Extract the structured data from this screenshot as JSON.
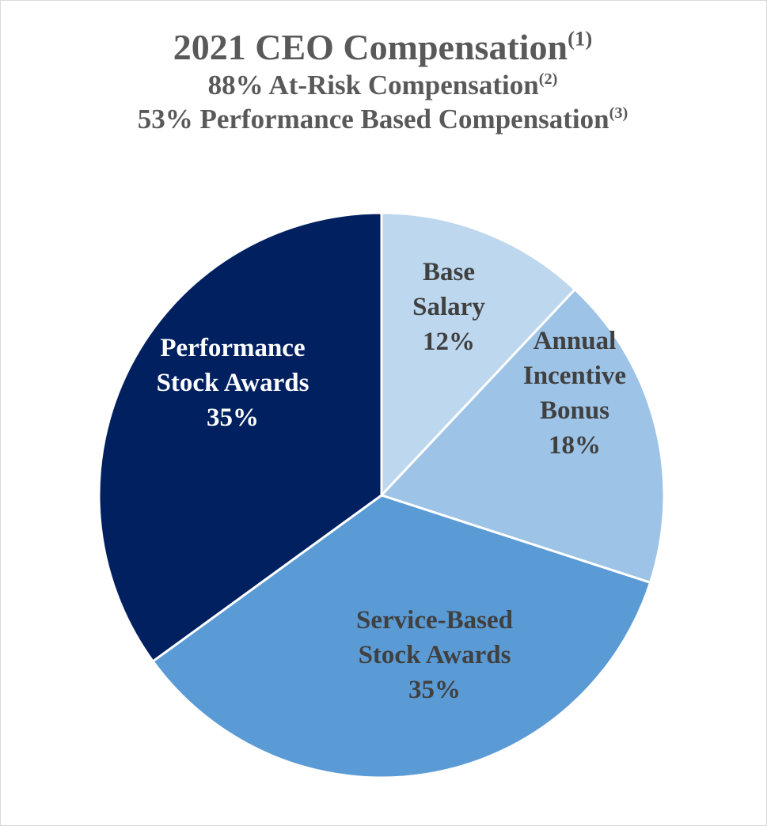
{
  "chart_data": {
    "type": "pie",
    "title": "2021 CEO Compensation",
    "title_note": "(1)",
    "subtitles": [
      {
        "text": "88% At-Risk Compensation",
        "note": "(2)"
      },
      {
        "text": "53% Performance Based Compensation",
        "note": "(3)"
      }
    ],
    "slices": [
      {
        "lines": [
          "Base",
          "Salary"
        ],
        "pct_label": "12%",
        "value": 12,
        "color": "#bdd7ee",
        "label_color": "#404040"
      },
      {
        "lines": [
          "Annual",
          "Incentive",
          "Bonus"
        ],
        "pct_label": "18%",
        "value": 18,
        "color": "#9dc3e6",
        "label_color": "#404040"
      },
      {
        "lines": [
          "Service-Based",
          "Stock Awards"
        ],
        "pct_label": "35%",
        "value": 35,
        "color": "#5b9bd5",
        "label_color": "#404040"
      },
      {
        "lines": [
          "Performance",
          "Stock Awards"
        ],
        "pct_label": "35%",
        "value": 35,
        "color": "#002060",
        "label_color": "#ffffff"
      }
    ],
    "start": "12 o'clock",
    "direction": "clockwise",
    "legend": "none"
  }
}
